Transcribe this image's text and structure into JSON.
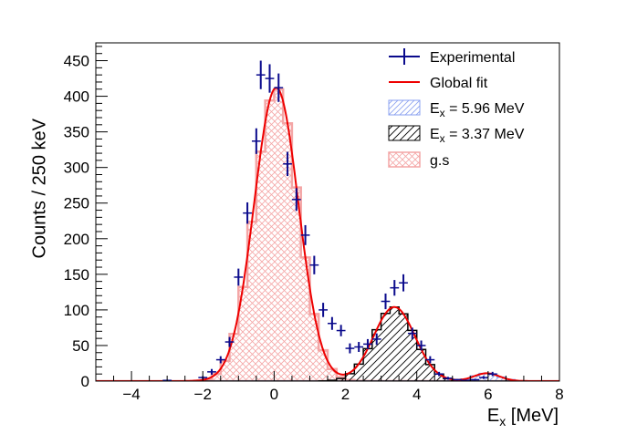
{
  "chart_data": {
    "type": "histogram",
    "xlabel": "E",
    "xlabel_sub": "x",
    "xlabel_unit": " [MeV]",
    "ylabel": "Counts / 250 keV",
    "xlim": [
      -5,
      8
    ],
    "ylim": [
      0,
      475
    ],
    "x_ticks": [
      -4,
      -2,
      0,
      2,
      4,
      6,
      8
    ],
    "y_ticks": [
      0,
      50,
      100,
      150,
      200,
      250,
      300,
      350,
      400,
      450
    ],
    "bin_width": 0.25,
    "legend": {
      "position": "top-right",
      "entries": [
        {
          "key": "experimental",
          "label": "Experimental",
          "sub": "",
          "tail": ""
        },
        {
          "key": "fit",
          "label": "Global fit",
          "sub": "",
          "tail": ""
        },
        {
          "key": "e596",
          "label": "E",
          "sub": "x",
          "tail": " = 5.96 MeV"
        },
        {
          "key": "e337",
          "label": "E",
          "sub": "x",
          "tail": " = 3.37 MeV"
        },
        {
          "key": "gs",
          "label": "g.s",
          "sub": "",
          "tail": ""
        }
      ]
    },
    "colors": {
      "experimental": "#0a0a8c",
      "fit": "#ee0000",
      "e596": "#8aa0f0",
      "e337": "#000000",
      "gs": "#f4a6a6"
    },
    "experimental": {
      "x": [
        -3.0,
        -2.0,
        -1.75,
        -1.5,
        -1.25,
        -1.0,
        -0.75,
        -0.5,
        -0.375,
        -0.125,
        0.125,
        0.375,
        0.625,
        0.875,
        1.125,
        1.375,
        1.625,
        1.875,
        2.125,
        2.375,
        2.625,
        2.875,
        3.125,
        3.375,
        3.625,
        3.875,
        4.125,
        4.375,
        4.625,
        4.875,
        5.125,
        5.375,
        5.625,
        5.875,
        6.125
      ],
      "y": [
        1,
        5,
        13,
        30,
        55,
        146,
        236,
        337,
        430,
        425,
        412,
        305,
        255,
        205,
        163,
        100,
        81,
        71,
        46,
        48,
        52,
        59,
        112,
        131,
        138,
        67,
        50,
        30,
        10,
        4,
        2,
        1,
        2,
        5,
        10
      ],
      "err": [
        1,
        2,
        4,
        5,
        7,
        12,
        15,
        18,
        20,
        20,
        20,
        17,
        16,
        14,
        13,
        10,
        9,
        8,
        7,
        7,
        7,
        8,
        11,
        11,
        12,
        8,
        7,
        5,
        3,
        2,
        1,
        1,
        1,
        2,
        3
      ]
    },
    "gs_component": {
      "amplitude": 412,
      "mean": 0.06,
      "sigma": 0.62
    },
    "e337_component": {
      "amplitude": 104,
      "mean": 3.37,
      "sigma": 0.58
    },
    "e596_component": {
      "amplitude": 11,
      "mean": 5.96,
      "sigma": 0.36
    }
  }
}
